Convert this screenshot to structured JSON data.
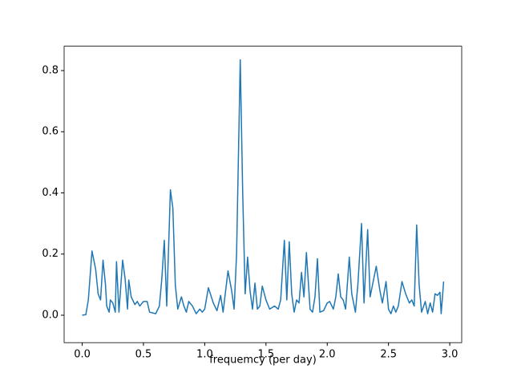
{
  "chart_data": {
    "type": "line",
    "xlabel": "frequemcy (per day)",
    "x": [
      0.0,
      0.03,
      0.05,
      0.08,
      0.11,
      0.13,
      0.15,
      0.17,
      0.19,
      0.2,
      0.22,
      0.23,
      0.25,
      0.27,
      0.28,
      0.3,
      0.33,
      0.35,
      0.37,
      0.38,
      0.4,
      0.43,
      0.45,
      0.47,
      0.5,
      0.53,
      0.55,
      0.6,
      0.63,
      0.65,
      0.67,
      0.69,
      0.72,
      0.74,
      0.76,
      0.78,
      0.81,
      0.83,
      0.85,
      0.87,
      0.9,
      0.93,
      0.96,
      0.98,
      1.0,
      1.03,
      1.07,
      1.1,
      1.13,
      1.15,
      1.19,
      1.22,
      1.24,
      1.26,
      1.29,
      1.31,
      1.33,
      1.35,
      1.37,
      1.39,
      1.41,
      1.43,
      1.45,
      1.47,
      1.5,
      1.53,
      1.57,
      1.6,
      1.62,
      1.65,
      1.67,
      1.69,
      1.71,
      1.73,
      1.75,
      1.77,
      1.79,
      1.81,
      1.83,
      1.86,
      1.88,
      1.9,
      1.92,
      1.94,
      1.97,
      2.0,
      2.02,
      2.05,
      2.07,
      2.09,
      2.11,
      2.13,
      2.15,
      2.18,
      2.2,
      2.23,
      2.25,
      2.28,
      2.3,
      2.33,
      2.35,
      2.37,
      2.4,
      2.43,
      2.45,
      2.48,
      2.5,
      2.52,
      2.54,
      2.56,
      2.58,
      2.61,
      2.64,
      2.67,
      2.69,
      2.71,
      2.73,
      2.75,
      2.77,
      2.8,
      2.82,
      2.84,
      2.86,
      2.88,
      2.9,
      2.92,
      2.93,
      2.95
    ],
    "series": [
      {
        "color": "#1f77b4",
        "values": [
          0.0,
          0.002,
          0.05,
          0.21,
          0.15,
          0.07,
          0.05,
          0.18,
          0.1,
          0.03,
          0.01,
          0.05,
          0.04,
          0.01,
          0.175,
          0.01,
          0.18,
          0.12,
          0.02,
          0.115,
          0.06,
          0.035,
          0.045,
          0.03,
          0.045,
          0.045,
          0.01,
          0.005,
          0.03,
          0.12,
          0.245,
          0.03,
          0.41,
          0.35,
          0.1,
          0.02,
          0.06,
          0.03,
          0.01,
          0.045,
          0.03,
          0.005,
          0.02,
          0.01,
          0.02,
          0.09,
          0.04,
          0.015,
          0.065,
          0.01,
          0.145,
          0.08,
          0.02,
          0.2,
          0.835,
          0.4,
          0.07,
          0.19,
          0.08,
          0.02,
          0.105,
          0.02,
          0.03,
          0.095,
          0.05,
          0.02,
          0.03,
          0.02,
          0.05,
          0.245,
          0.05,
          0.24,
          0.07,
          0.01,
          0.05,
          0.04,
          0.14,
          0.06,
          0.205,
          0.02,
          0.01,
          0.06,
          0.185,
          0.01,
          0.015,
          0.04,
          0.045,
          0.02,
          0.06,
          0.135,
          0.06,
          0.05,
          0.02,
          0.19,
          0.07,
          0.01,
          0.1,
          0.3,
          0.04,
          0.28,
          0.06,
          0.1,
          0.16,
          0.08,
          0.04,
          0.11,
          0.02,
          0.005,
          0.03,
          0.01,
          0.03,
          0.11,
          0.07,
          0.04,
          0.05,
          0.03,
          0.295,
          0.1,
          0.01,
          0.045,
          0.005,
          0.04,
          0.01,
          0.07,
          0.065,
          0.075,
          0.005,
          0.11
        ]
      }
    ],
    "xlim": [
      -0.1475,
      3.0975
    ],
    "ylim": [
      -0.0897,
      0.8797
    ],
    "xticks": [
      {
        "value": 0,
        "label": "0.0"
      },
      0.5,
      {
        "value": 1,
        "label": "1.0"
      },
      1.5,
      {
        "value": 2,
        "label": "2.0"
      },
      2.5,
      {
        "value": 3,
        "label": "3.0"
      }
    ],
    "yticks": [
      {
        "value": 0,
        "label": "0.0"
      },
      0.2,
      0.4,
      0.6,
      0.8
    ],
    "grid": false
  }
}
